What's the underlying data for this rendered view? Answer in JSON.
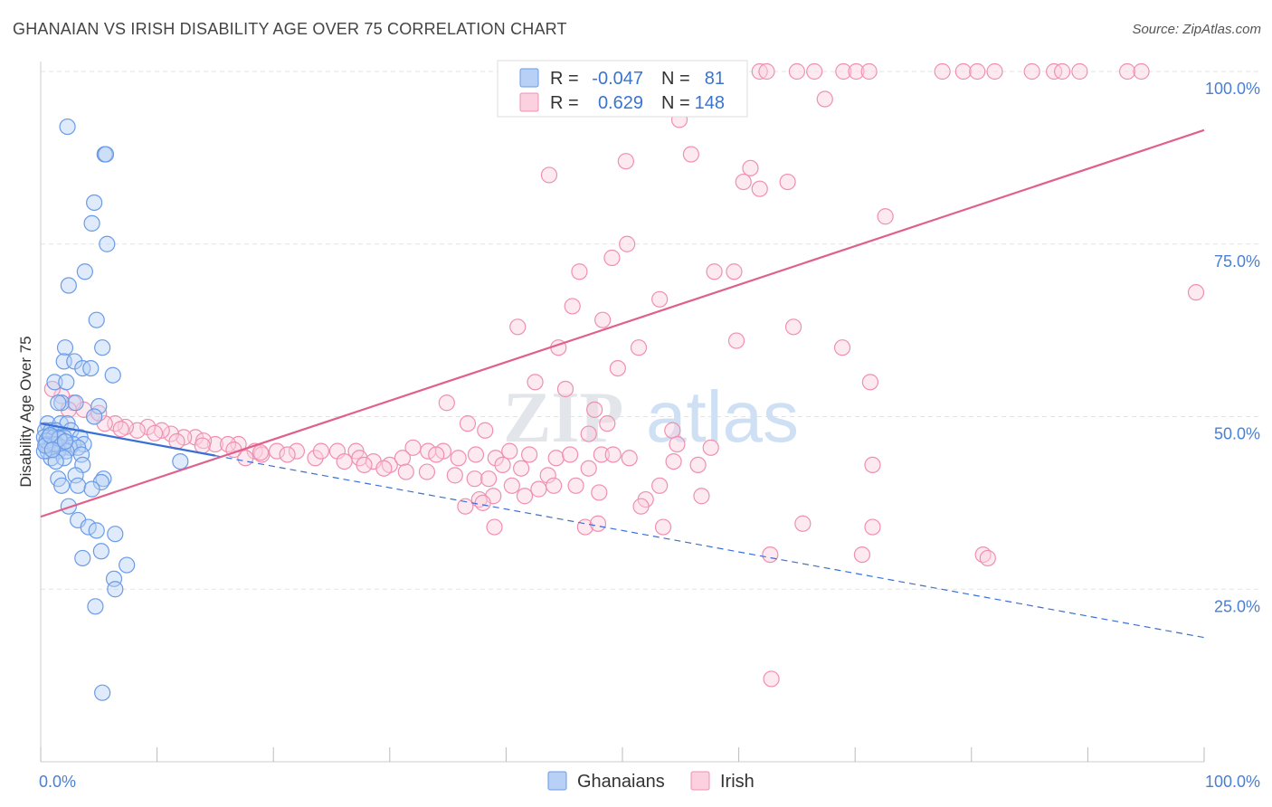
{
  "title": "GHANAIAN VS IRISH DISABILITY AGE OVER 75 CORRELATION CHART",
  "source": "Source: ZipAtlas.com",
  "watermark": {
    "zip": "ZIP",
    "atlas": "atlas"
  },
  "colors": {
    "ghanaians": "#6a9be8",
    "ghanaians_fill": "#b8d0f5",
    "ghanaians_line": "#3a6fd6",
    "irish": "#f08fb0",
    "irish_fill": "#fbd0df",
    "irish_line": "#e0608c",
    "tick_label": "#4a7fd4",
    "grid": "#e3e3e3"
  },
  "legend_box": {
    "rows": [
      {
        "r_label": "R =",
        "r_value": "-0.047",
        "n_label": "N =",
        "n_value": "81"
      },
      {
        "r_label": "R =",
        "r_value": "0.629",
        "n_label": "N =",
        "n_value": "148"
      }
    ]
  },
  "bottom_legend": [
    "Ghanaians",
    "Irish"
  ],
  "chart_data": {
    "type": "scatter",
    "title": "GHANAIAN VS IRISH DISABILITY AGE OVER 75 CORRELATION CHART",
    "xlabel": "",
    "ylabel": "Disability Age Over 75",
    "xlim": [
      0,
      100
    ],
    "ylim": [
      0,
      100
    ],
    "x_tick_labels": [
      "0.0%",
      "100.0%"
    ],
    "y_ticks": [
      25,
      50,
      75,
      100
    ],
    "y_tick_labels": [
      "25.0%",
      "50.0%",
      "75.0%",
      "100.0%"
    ],
    "grid": true,
    "series": [
      {
        "name": "Ghanaians",
        "r": -0.047,
        "n": 81,
        "trend": {
          "x0": 0,
          "y0": 49,
          "x1": 100,
          "y1": 18,
          "solid_until_x": 15
        },
        "points": [
          [
            2.3,
            92
          ],
          [
            5.5,
            88
          ],
          [
            5.6,
            88
          ],
          [
            4.6,
            81
          ],
          [
            4.4,
            78
          ],
          [
            5.7,
            75
          ],
          [
            3.8,
            71
          ],
          [
            2.4,
            69
          ],
          [
            4.8,
            64
          ],
          [
            5.3,
            60
          ],
          [
            2.1,
            60
          ],
          [
            2.0,
            58
          ],
          [
            2.9,
            58
          ],
          [
            3.6,
            57
          ],
          [
            6.2,
            56
          ],
          [
            4.3,
            57
          ],
          [
            1.2,
            55
          ],
          [
            2.2,
            55
          ],
          [
            1.8,
            52
          ],
          [
            1.5,
            52
          ],
          [
            3.0,
            52
          ],
          [
            5.0,
            51.5
          ],
          [
            4.6,
            50
          ],
          [
            0.6,
            49
          ],
          [
            1.7,
            49
          ],
          [
            2.3,
            49
          ],
          [
            0.4,
            48
          ],
          [
            0.9,
            48
          ],
          [
            1.3,
            48
          ],
          [
            2.6,
            48
          ],
          [
            3.4,
            47
          ],
          [
            0.3,
            47
          ],
          [
            0.7,
            47
          ],
          [
            1.1,
            47
          ],
          [
            1.6,
            47
          ],
          [
            2.0,
            47
          ],
          [
            0.5,
            46
          ],
          [
            1.0,
            46
          ],
          [
            1.4,
            46
          ],
          [
            2.8,
            46
          ],
          [
            3.7,
            46
          ],
          [
            0.8,
            45.5
          ],
          [
            1.9,
            45.5
          ],
          [
            2.5,
            45.5
          ],
          [
            3.2,
            45.5
          ],
          [
            0.6,
            45
          ],
          [
            1.5,
            45
          ],
          [
            2.2,
            45
          ],
          [
            3.5,
            44.5
          ],
          [
            0.9,
            44
          ],
          [
            2.0,
            44
          ],
          [
            1.3,
            43.5
          ],
          [
            3.6,
            43
          ],
          [
            12.0,
            43.5
          ],
          [
            3.0,
            41.5
          ],
          [
            1.5,
            41
          ],
          [
            5.4,
            41
          ],
          [
            5.2,
            40.5
          ],
          [
            3.2,
            40
          ],
          [
            1.8,
            40
          ],
          [
            4.4,
            39.5
          ],
          [
            2.4,
            37
          ],
          [
            3.2,
            35
          ],
          [
            4.1,
            34
          ],
          [
            4.8,
            33.5
          ],
          [
            6.4,
            33
          ],
          [
            5.2,
            30.5
          ],
          [
            3.6,
            29.5
          ],
          [
            7.4,
            28.5
          ],
          [
            6.3,
            26.5
          ],
          [
            6.4,
            25
          ],
          [
            4.7,
            22.5
          ],
          [
            5.3,
            10
          ],
          [
            0.3,
            45
          ],
          [
            0.5,
            46.5
          ],
          [
            1.2,
            46
          ],
          [
            0.4,
            45.8
          ],
          [
            1.6,
            46.8
          ],
          [
            2.1,
            46.4
          ],
          [
            0.8,
            47.3
          ],
          [
            1.0,
            45.2
          ]
        ]
      },
      {
        "name": "Irish",
        "r": 0.629,
        "n": 148,
        "trend": {
          "x0": 0,
          "y0": 35.5,
          "x1": 100,
          "y1": 91.5
        },
        "points": [
          [
            61.8,
            100
          ],
          [
            62.4,
            100
          ],
          [
            65.0,
            100
          ],
          [
            66.5,
            100
          ],
          [
            69.0,
            100
          ],
          [
            70.1,
            100
          ],
          [
            71.2,
            100
          ],
          [
            77.5,
            100
          ],
          [
            79.3,
            100
          ],
          [
            80.5,
            100
          ],
          [
            82.0,
            100
          ],
          [
            85.2,
            100
          ],
          [
            87.1,
            100
          ],
          [
            87.8,
            100
          ],
          [
            89.3,
            100
          ],
          [
            93.4,
            100
          ],
          [
            94.6,
            100
          ],
          [
            67.4,
            96
          ],
          [
            54.9,
            93
          ],
          [
            55.9,
            88
          ],
          [
            50.3,
            87
          ],
          [
            61.0,
            86
          ],
          [
            43.7,
            85
          ],
          [
            60.4,
            84
          ],
          [
            64.2,
            84
          ],
          [
            61.8,
            83
          ],
          [
            72.6,
            79
          ],
          [
            50.4,
            75
          ],
          [
            49.1,
            73
          ],
          [
            46.3,
            71
          ],
          [
            57.9,
            71
          ],
          [
            59.6,
            71
          ],
          [
            53.2,
            67
          ],
          [
            45.7,
            66
          ],
          [
            48.3,
            64
          ],
          [
            64.7,
            63
          ],
          [
            41.0,
            63
          ],
          [
            59.8,
            61
          ],
          [
            44.5,
            60
          ],
          [
            68.9,
            60
          ],
          [
            51.4,
            60
          ],
          [
            49.6,
            57
          ],
          [
            71.3,
            55
          ],
          [
            42.5,
            55
          ],
          [
            45.1,
            54
          ],
          [
            34.9,
            52
          ],
          [
            47.6,
            51
          ],
          [
            36.7,
            49
          ],
          [
            38.2,
            48
          ],
          [
            48.7,
            49
          ],
          [
            54.3,
            48
          ],
          [
            47.1,
            47.5
          ],
          [
            54.7,
            46
          ],
          [
            57.6,
            45.5
          ],
          [
            40.3,
            45
          ],
          [
            32.0,
            45.5
          ],
          [
            33.3,
            45
          ],
          [
            34.6,
            45
          ],
          [
            37.4,
            44.5
          ],
          [
            39.1,
            44
          ],
          [
            42.0,
            44.5
          ],
          [
            44.3,
            44
          ],
          [
            45.5,
            44.5
          ],
          [
            48.2,
            44.5
          ],
          [
            54.4,
            43.5
          ],
          [
            56.5,
            43
          ],
          [
            25.5,
            45
          ],
          [
            27.1,
            45
          ],
          [
            27.4,
            44
          ],
          [
            28.6,
            43.5
          ],
          [
            30.0,
            43
          ],
          [
            31.1,
            44
          ],
          [
            34.0,
            44.5
          ],
          [
            35.9,
            44
          ],
          [
            39.7,
            43
          ],
          [
            41.3,
            42.5
          ],
          [
            43.6,
            41.5
          ],
          [
            47.1,
            42.5
          ],
          [
            49.2,
            44.5
          ],
          [
            50.6,
            44
          ],
          [
            71.5,
            43
          ],
          [
            22.0,
            45
          ],
          [
            23.6,
            44
          ],
          [
            24.1,
            45
          ],
          [
            26.1,
            43.5
          ],
          [
            27.8,
            43
          ],
          [
            29.5,
            42.5
          ],
          [
            31.4,
            42
          ],
          [
            33.2,
            42
          ],
          [
            35.6,
            41.5
          ],
          [
            37.3,
            41
          ],
          [
            38.5,
            41
          ],
          [
            40.5,
            40
          ],
          [
            42.8,
            39.5
          ],
          [
            44.1,
            40
          ],
          [
            46.0,
            40
          ],
          [
            48.0,
            39
          ],
          [
            53.2,
            40
          ],
          [
            56.8,
            38.5
          ],
          [
            17.0,
            46
          ],
          [
            18.4,
            45
          ],
          [
            19.0,
            44.5
          ],
          [
            20.3,
            45
          ],
          [
            21.2,
            44.5
          ],
          [
            17.6,
            44
          ],
          [
            15.0,
            46
          ],
          [
            16.1,
            46
          ],
          [
            13.3,
            47
          ],
          [
            14.0,
            46.5
          ],
          [
            12.3,
            47
          ],
          [
            11.2,
            47.5
          ],
          [
            10.4,
            48
          ],
          [
            9.2,
            48.5
          ],
          [
            8.3,
            48
          ],
          [
            7.3,
            48.5
          ],
          [
            6.4,
            49
          ],
          [
            5.5,
            49
          ],
          [
            4.6,
            50
          ],
          [
            3.7,
            51
          ],
          [
            2.8,
            52
          ],
          [
            1.8,
            53
          ],
          [
            1.0,
            54
          ],
          [
            2.4,
            51
          ],
          [
            5.0,
            50.5
          ],
          [
            6.9,
            48.2
          ],
          [
            9.8,
            47.6
          ],
          [
            11.7,
            46.4
          ],
          [
            13.9,
            45.8
          ],
          [
            16.6,
            45.2
          ],
          [
            18.9,
            44.8
          ],
          [
            38.9,
            38.5
          ],
          [
            41.6,
            38.5
          ],
          [
            37.7,
            38
          ],
          [
            52.0,
            38
          ],
          [
            36.5,
            37
          ],
          [
            38.0,
            37.5
          ],
          [
            51.6,
            37
          ],
          [
            39.0,
            34
          ],
          [
            46.8,
            34
          ],
          [
            47.9,
            34.5
          ],
          [
            53.5,
            34
          ],
          [
            65.5,
            34.5
          ],
          [
            71.5,
            34
          ],
          [
            81.0,
            30
          ],
          [
            70.6,
            30
          ],
          [
            81.4,
            29.5
          ],
          [
            62.7,
            30
          ],
          [
            99.3,
            68
          ],
          [
            62.8,
            12
          ]
        ]
      }
    ]
  }
}
